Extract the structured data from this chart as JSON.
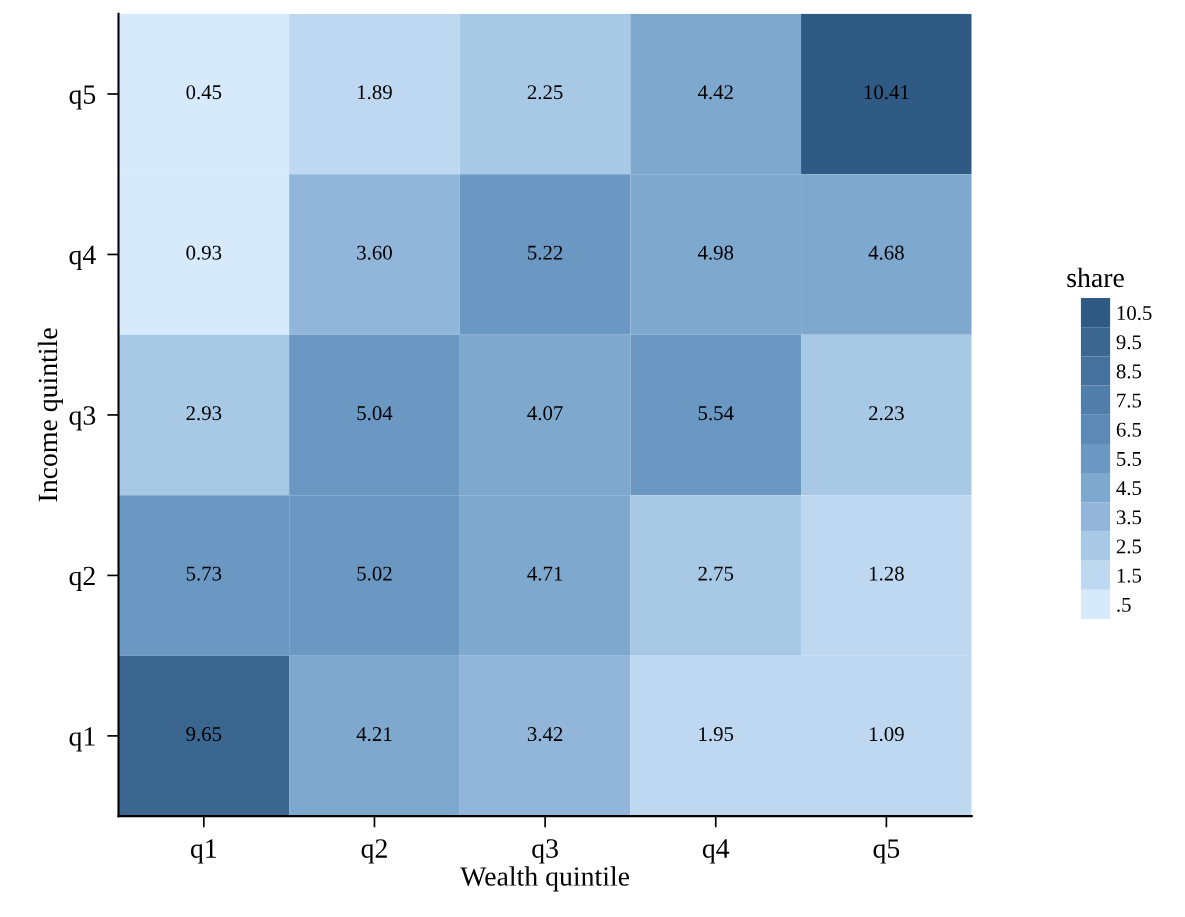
{
  "chart_data": {
    "type": "heatmap",
    "xlabel": "Wealth quintile",
    "ylabel": "Income quintile",
    "clabel": "share",
    "categories": [
      "q1",
      "q2",
      "q3",
      "q4",
      "q5"
    ],
    "y_categories": [
      "q5",
      "q4",
      "q3",
      "q2",
      "q1"
    ],
    "cells": [
      [
        0.45,
        1.89,
        2.25,
        4.42,
        10.41
      ],
      [
        0.93,
        3.6,
        5.22,
        4.98,
        4.68
      ],
      [
        2.93,
        5.04,
        4.07,
        5.54,
        2.23
      ],
      [
        5.73,
        5.02,
        4.71,
        2.75,
        1.28
      ],
      [
        9.65,
        4.21,
        3.42,
        1.95,
        1.09
      ]
    ],
    "cell_labels": [
      [
        "0.45",
        "1.89",
        "2.25",
        "4.42",
        "10.41"
      ],
      [
        "0.93",
        "3.60",
        "5.22",
        "4.98",
        "4.68"
      ],
      [
        "2.93",
        "5.04",
        "4.07",
        "5.54",
        "2.23"
      ],
      [
        "5.73",
        "5.02",
        "4.71",
        "2.75",
        "1.28"
      ],
      [
        "9.65",
        "4.21",
        "3.42",
        "1.95",
        "1.09"
      ]
    ],
    "colors": [
      "#d6eafc",
      "#bed8f1",
      "#a8c9e6",
      "#92b6da",
      "#7fa8cf",
      "#6b98c3",
      "#5c8ab7",
      "#4f7eab",
      "#44719e",
      "#3a6690",
      "#2f5a83"
    ],
    "clim": [
      0,
      11
    ],
    "cticks": [
      {
        "value": 0.5,
        "label": ".5"
      },
      1.5,
      2.5,
      3.5,
      4.5,
      5.5,
      6.5,
      7.5,
      8.5,
      9.5,
      10.5
    ]
  }
}
